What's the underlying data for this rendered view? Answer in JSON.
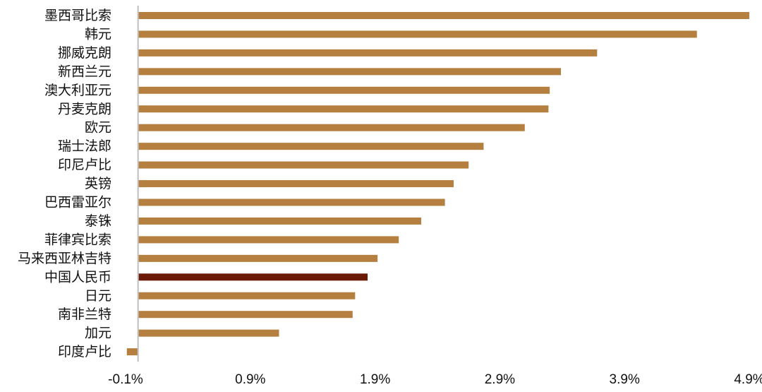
{
  "chart_data": {
    "type": "bar",
    "orientation": "horizontal",
    "title": "",
    "xlabel": "",
    "ylabel": "",
    "categories": [
      "墨西哥比索",
      "韩元",
      "挪威克朗",
      "新西兰元",
      "澳大利亚元",
      "丹麦克朗",
      "欧元",
      "瑞士法郎",
      "印尼卢比",
      "英镑",
      "巴西雷亚尔",
      "泰铢",
      "菲律宾比索",
      "马来西亚林吉特",
      "中国人民币",
      "日元",
      "南非兰特",
      "加元",
      "印度卢比"
    ],
    "values": [
      4.9,
      4.48,
      3.68,
      3.39,
      3.3,
      3.29,
      3.1,
      2.77,
      2.65,
      2.53,
      2.46,
      2.27,
      2.09,
      1.92,
      1.84,
      1.74,
      1.72,
      1.13,
      -0.09
    ],
    "highlight": "中国人民币",
    "xlim": [
      -0.1,
      4.9
    ],
    "xticks": [
      -0.1,
      0.9,
      1.9,
      2.9,
      3.9,
      4.9
    ],
    "xtick_labels": [
      "-0.1%",
      "0.9%",
      "1.9%",
      "2.9%",
      "3.9%",
      "4.9%"
    ],
    "grid": false,
    "legend": "none",
    "colors": {
      "bar": "#B5803F",
      "highlight": "#6B1A08",
      "axis": "#BFBFBF",
      "text": "#111111"
    }
  }
}
